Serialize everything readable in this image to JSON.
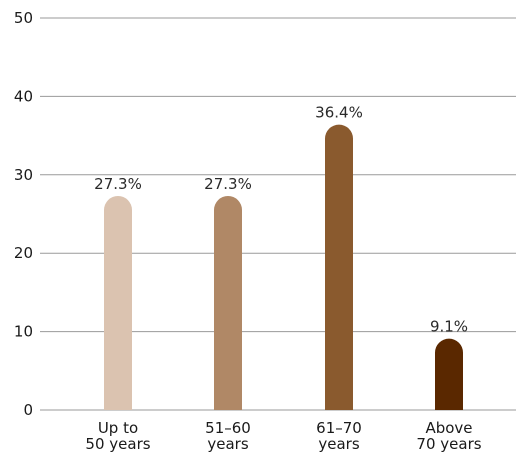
{
  "chart_data": {
    "type": "bar",
    "categories": [
      [
        "Up to",
        "50 years"
      ],
      [
        "51–60",
        "years"
      ],
      [
        "61–70",
        "years"
      ],
      [
        "Above",
        "70 years"
      ]
    ],
    "values": [
      27.3,
      27.3,
      36.4,
      9.1
    ],
    "data_labels": [
      "27.3%",
      "27.3%",
      "36.4%",
      "9.1%"
    ],
    "colors": [
      "#dbc3b0",
      "#b08866",
      "#8a5a2e",
      "#5a2800"
    ],
    "yticks": [
      0,
      10,
      20,
      30,
      40,
      50
    ],
    "ylim": [
      0,
      50
    ],
    "grid": true,
    "title": "",
    "xlabel": "",
    "ylabel": ""
  }
}
